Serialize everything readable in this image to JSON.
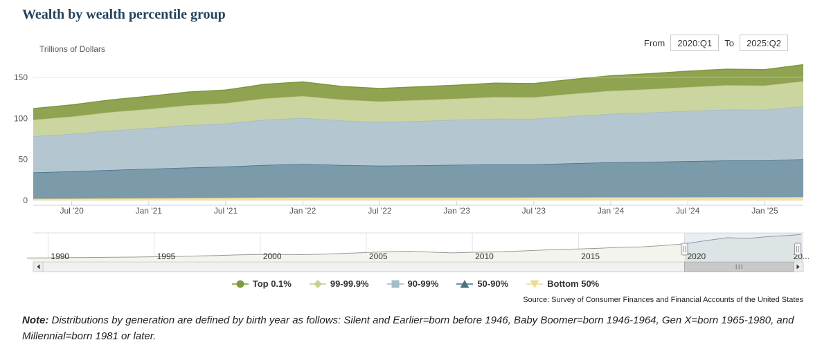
{
  "page": {
    "title": "Wealth by wealth percentile group"
  },
  "controls": {
    "from_label": "From",
    "from_value": "2020:Q1",
    "to_label": "To",
    "to_value": "2025:Q2"
  },
  "chart_data": {
    "type": "area",
    "stacked": true,
    "title": "Wealth by wealth percentile group",
    "unit_label": "Trillions of Dollars",
    "ylim": [
      0,
      150
    ],
    "yticks": [
      0,
      50,
      100,
      150
    ],
    "grid": "horizontal",
    "legend_position": "bottom-center",
    "x_quarters": [
      "2020:Q1",
      "2020:Q2",
      "2020:Q3",
      "2020:Q4",
      "2021:Q1",
      "2021:Q2",
      "2021:Q3",
      "2021:Q4",
      "2022:Q1",
      "2022:Q2",
      "2022:Q3",
      "2022:Q4",
      "2023:Q1",
      "2023:Q2",
      "2023:Q3",
      "2023:Q4",
      "2024:Q1",
      "2024:Q2",
      "2024:Q3",
      "2024:Q4",
      "2025:Q1",
      "2025:Q2"
    ],
    "x_tick_marks": [
      {
        "index": 2,
        "label": "Jul '20"
      },
      {
        "index": 4,
        "label": "Jan '21"
      },
      {
        "index": 6,
        "label": "Jul '21"
      },
      {
        "index": 8,
        "label": "Jan '22"
      },
      {
        "index": 10,
        "label": "Jul '22"
      },
      {
        "index": 12,
        "label": "Jan '23"
      },
      {
        "index": 14,
        "label": "Jul '23"
      },
      {
        "index": 16,
        "label": "Jan '24"
      },
      {
        "index": 18,
        "label": "Jul '24"
      },
      {
        "index": 20,
        "label": "Jan '25"
      }
    ],
    "series": [
      {
        "name": "Bottom 50%",
        "marker": "triangle-down",
        "fill": "#f3e3a2",
        "line": "#ddc87e",
        "marker_fill": "#eedc8f",
        "marker_line": "#f3e5a8",
        "values": [
          1.9,
          2.1,
          2.3,
          2.5,
          2.8,
          3.0,
          3.3,
          3.5,
          3.7,
          3.6,
          3.5,
          3.5,
          3.6,
          3.6,
          3.7,
          3.8,
          3.9,
          3.9,
          4.0,
          4.1,
          4.0,
          4.2
        ]
      },
      {
        "name": "50-90%",
        "marker": "triangle-up",
        "fill": "#7b9aaa",
        "line": "#40708a",
        "marker_fill": "#4b7082",
        "marker_line": "#6e93a3",
        "values": [
          30.9,
          32.0,
          33.2,
          34.6,
          35.7,
          37.0,
          38.0,
          39.6,
          40.6,
          39.6,
          38.8,
          39.3,
          39.8,
          40.3,
          40.2,
          41.5,
          42.5,
          43.1,
          43.9,
          44.5,
          44.6,
          46.2
        ]
      },
      {
        "name": "90-99%",
        "marker": "square",
        "fill": "#b4c7d0",
        "line": "#a2bac5",
        "marker_fill": "#a3bdc9",
        "marker_line": "#b4c8d1",
        "values": [
          42.0,
          44.0,
          45.6,
          48.0,
          49.6,
          51.6,
          52.5,
          55.2,
          56.3,
          54.2,
          53.2,
          54.0,
          54.8,
          55.7,
          55.5,
          57.4,
          59.2,
          60.1,
          61.2,
          62.2,
          62.0,
          64.3
        ]
      },
      {
        "name": "99-99.9%",
        "marker": "diamond",
        "fill": "#cad5a0",
        "line": "#b9c77f",
        "marker_fill": "#c6d194",
        "marker_line": "#cfd9a6",
        "values": [
          19.5,
          20.3,
          21.2,
          22.5,
          23.3,
          24.3,
          24.7,
          26.0,
          26.6,
          25.6,
          25.1,
          25.5,
          25.9,
          26.4,
          26.3,
          27.2,
          28.0,
          28.5,
          29.1,
          29.6,
          29.5,
          30.6
        ]
      },
      {
        "name": "Top 0.1%",
        "marker": "circle",
        "fill": "#90a351",
        "line": "#7d973d",
        "marker_fill": "#7e9a3e",
        "marker_line": "#9db15c",
        "values": [
          12.7,
          13.6,
          14.2,
          14.9,
          15.6,
          16.1,
          16.0,
          17.2,
          17.3,
          16.0,
          15.9,
          16.2,
          16.4,
          17.0,
          16.8,
          17.6,
          18.4,
          18.9,
          19.3,
          19.6,
          19.4,
          20.2
        ]
      }
    ],
    "legend_order_top_to_bottom": [
      "Top 0.1%",
      "99-99.9%",
      "90-99%",
      "50-90%",
      "Bottom 50%"
    ]
  },
  "navigator": {
    "x_range": [
      1989.3,
      2025.6
    ],
    "selected_range": [
      2020.0,
      2025.6
    ],
    "x": [
      1989,
      1990,
      1991,
      1992,
      1993,
      1994,
      1995,
      1996,
      1997,
      1998,
      1999,
      2000,
      2001,
      2002,
      2003,
      2004,
      2005,
      2006,
      2007,
      2008,
      2009,
      2010,
      2011,
      2012,
      2013,
      2014,
      2015,
      2016,
      2017,
      2018,
      2019,
      2020,
      2021,
      2022,
      2023,
      2024,
      2025,
      2025.5
    ],
    "totals": [
      20.5,
      21.0,
      22.0,
      23.0,
      24.5,
      25.5,
      27.5,
      29.5,
      32.5,
      35.5,
      39.0,
      41.5,
      41.5,
      40.5,
      44.0,
      48.5,
      53.5,
      58.5,
      61.5,
      56.0,
      51.5,
      55.0,
      57.0,
      61.5,
      67.0,
      72.5,
      75.5,
      79.5,
      86.5,
      88.5,
      96.5,
      107.0,
      127.0,
      144.5,
      140.5,
      152.0,
      159.5,
      165.5
    ],
    "year_labels": [
      {
        "year": 1990,
        "label": "1990"
      },
      {
        "year": 1995,
        "label": "1995"
      },
      {
        "year": 2000,
        "label": "2000"
      },
      {
        "year": 2005,
        "label": "2005"
      },
      {
        "year": 2010,
        "label": "2010"
      },
      {
        "year": 2015,
        "label": "2015"
      },
      {
        "year": 2020,
        "label": "2020"
      },
      {
        "year": 2025,
        "label": "20..."
      }
    ],
    "mask_color": "rgba(102,133,194,0.15)",
    "line_color": "#999999",
    "fill_color": "#f3f5ec",
    "scrollbar": {
      "left_arrow": "left-arrow",
      "right_arrow": "right-arrow",
      "grip": "|||"
    }
  },
  "source": "Source: Survey of Consumer Finances and Financial Accounts of the United States",
  "note": {
    "label": "Note:",
    "text": " Distributions by generation are defined by birth year as follows: Silent and Earlier=born before 1946, Baby Boomer=born 1946-1964, Gen X=born 1965-1980, and Millennial=born 1981 or later."
  },
  "theme": {
    "title_color": "#24425a",
    "axis_label_color": "#555555",
    "grid_color": "#e6e6e6"
  }
}
